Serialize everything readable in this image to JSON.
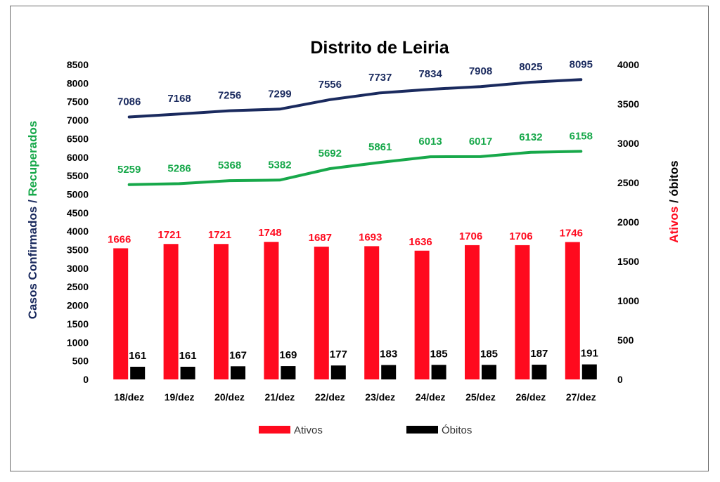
{
  "chart_data": {
    "type": "bar",
    "title": "Distrito de Leiria",
    "categories": [
      "18/dez",
      "19/dez",
      "20/dez",
      "21/dez",
      "22/dez",
      "23/dez",
      "24/dez",
      "25/dez",
      "26/dez",
      "27/dez"
    ],
    "left_axis": {
      "title_part1": "Casos Confirmados",
      "title_sep": " / ",
      "title_part2": "Recuperados",
      "ylim": [
        0,
        8500
      ],
      "ticks": [
        "0",
        "500",
        "1000",
        "1500",
        "2000",
        "2500",
        "3000",
        "3500",
        "4000",
        "4500",
        "5000",
        "5500",
        "6000",
        "6500",
        "7000",
        "7500",
        "8000",
        "8500"
      ]
    },
    "right_axis": {
      "title_part1": "Ativos",
      "title_sep": " / ",
      "title_part2": "óbitos",
      "ylim": [
        0,
        4000
      ],
      "ticks": [
        "0",
        "500",
        "1000",
        "1500",
        "2000",
        "2500",
        "3000",
        "3500",
        "4000"
      ]
    },
    "series": [
      {
        "key": "confirmados",
        "kind": "line",
        "axis": "left",
        "color": "#1a2a5e",
        "values": [
          7086,
          7168,
          7256,
          7299,
          7556,
          7737,
          7834,
          7908,
          8025,
          8095
        ]
      },
      {
        "key": "recuperados",
        "kind": "line",
        "axis": "left",
        "color": "#17a84a",
        "values": [
          5259,
          5286,
          5368,
          5382,
          5692,
          5861,
          6013,
          6017,
          6132,
          6158
        ]
      },
      {
        "key": "ativos",
        "kind": "bar",
        "axis": "right",
        "name": "Ativos",
        "color": "#ff0a1e",
        "values": [
          1666,
          1721,
          1721,
          1748,
          1687,
          1693,
          1636,
          1706,
          1706,
          1746
        ]
      },
      {
        "key": "obitos",
        "kind": "bar",
        "axis": "right",
        "name": "Óbitos",
        "color": "#000000",
        "values": [
          161,
          161,
          167,
          169,
          177,
          183,
          185,
          185,
          187,
          191
        ]
      }
    ],
    "colors": {
      "confirmados_title": "#1a2a5e",
      "recuperados_title": "#17a84a",
      "ativos_title": "#ff0a1e",
      "obitos_title": "#000000"
    },
    "legend": {
      "position": "bottom",
      "items": [
        "Ativos",
        "Óbitos"
      ]
    },
    "grid": false
  }
}
